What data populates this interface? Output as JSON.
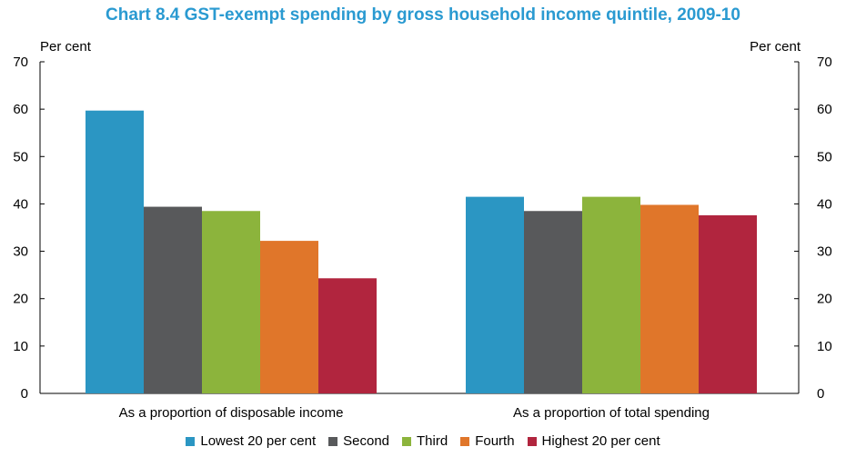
{
  "chart_data": {
    "type": "bar",
    "title": "Chart 8.4 GST-exempt spending by gross household income quintile, 2009-10",
    "ylabel_left": "Per cent",
    "ylabel_right": "Per cent",
    "ylim": [
      0,
      70
    ],
    "yticks": [
      0,
      10,
      20,
      30,
      40,
      50,
      60,
      70
    ],
    "categories": [
      "As a proportion of disposable income",
      "As a proportion of total spending"
    ],
    "series": [
      {
        "name": "Lowest 20 per cent",
        "color": "#2b96c3",
        "values": [
          59.7,
          41.5
        ]
      },
      {
        "name": "Second",
        "color": "#58595b",
        "values": [
          39.4,
          38.5
        ]
      },
      {
        "name": "Third",
        "color": "#8cb43c",
        "values": [
          38.5,
          41.5
        ]
      },
      {
        "name": "Fourth",
        "color": "#e0762a",
        "values": [
          32.2,
          39.8
        ]
      },
      {
        "name": "Highest 20 per cent",
        "color": "#b1253e",
        "values": [
          24.3,
          37.6
        ]
      }
    ],
    "legend_position": "bottom",
    "grid": false
  }
}
